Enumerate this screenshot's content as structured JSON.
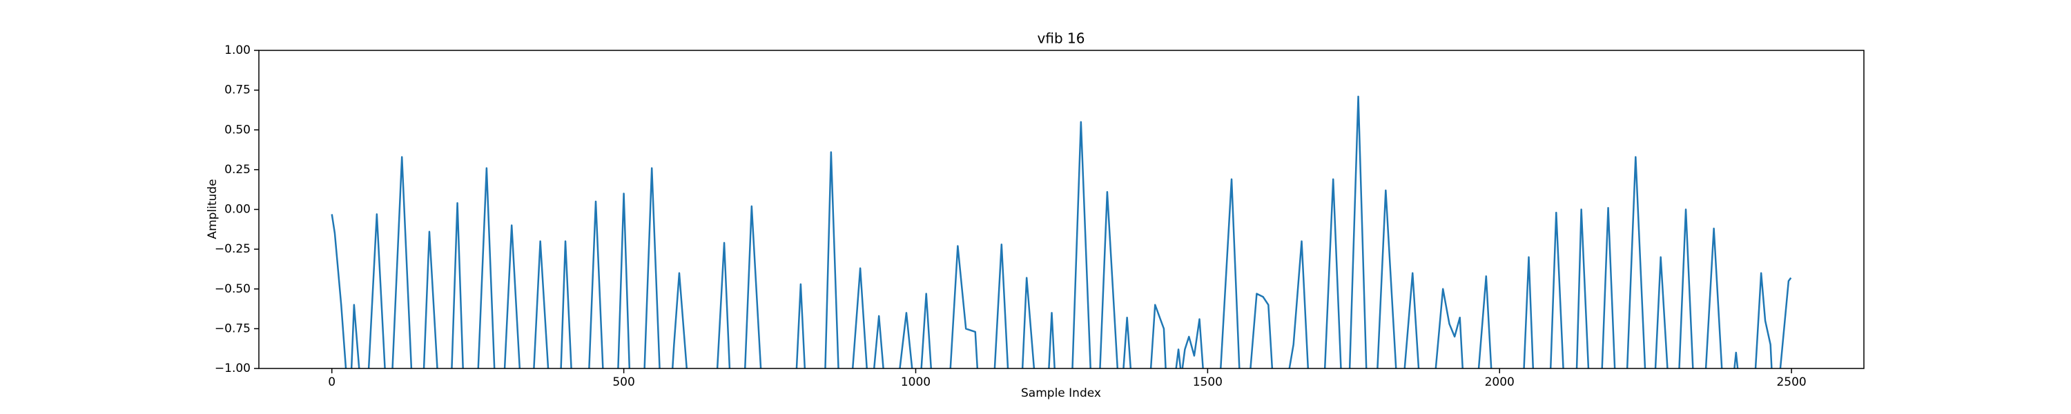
{
  "chart_data": {
    "type": "line",
    "title": "vfib 16",
    "xlabel": "Sample Index",
    "ylabel": "Amplitude",
    "x": [
      0,
      5,
      16,
      27,
      32,
      38,
      50,
      61,
      77,
      93,
      102,
      120,
      138,
      156,
      167,
      183,
      204,
      215,
      226,
      249,
      265,
      280,
      294,
      308,
      324,
      344,
      357,
      373,
      391,
      400,
      412,
      439,
      452,
      466,
      489,
      500,
      511,
      534,
      548,
      563,
      581,
      586,
      595,
      611,
      658,
      672,
      683,
      706,
      719,
      737,
      794,
      803,
      812,
      844,
      855,
      869,
      889,
      905,
      919,
      925,
      937,
      948,
      968,
      984,
      998,
      1007,
      1018,
      1029,
      1057,
      1072,
      1086,
      1102,
      1108,
      1133,
      1147,
      1160,
      1181,
      1190,
      1206,
      1226,
      1233,
      1240,
      1267,
      1283,
      1301,
      1314,
      1328,
      1348,
      1353,
      1362,
      1371,
      1400,
      1410,
      1425,
      1430,
      1441,
      1450,
      1455,
      1461,
      1468,
      1477,
      1486,
      1495,
      1520,
      1541,
      1556,
      1570,
      1584,
      1595,
      1604,
      1613,
      1633,
      1647,
      1661,
      1674,
      1699,
      1715,
      1730,
      1742,
      1758,
      1773,
      1789,
      1805,
      1825,
      1834,
      1851,
      1864,
      1887,
      1903,
      1914,
      1923,
      1932,
      1939,
      1961,
      1977,
      1988,
      2040,
      2050,
      2059,
      2086,
      2097,
      2111,
      2131,
      2140,
      2154,
      2174,
      2186,
      2199,
      2217,
      2233,
      2251,
      2265,
      2276,
      2290,
      2306,
      2319,
      2333,
      2351,
      2367,
      2383,
      2398,
      2405,
      2412,
      2436,
      2448,
      2455,
      2464,
      2468,
      2477,
      2495,
      2499
    ],
    "series": [
      {
        "name": "vfib 16",
        "color": "#1f77b4",
        "values": [
          -0.03,
          -0.15,
          -0.6,
          -1.15,
          -1.15,
          -0.6,
          -1.15,
          -1.15,
          -0.03,
          -1.15,
          -1.15,
          0.33,
          -1.15,
          -1.15,
          -0.14,
          -1.15,
          -1.15,
          0.04,
          -1.15,
          -1.15,
          0.26,
          -1.15,
          -1.15,
          -0.1,
          -1.15,
          -1.15,
          -0.2,
          -1.15,
          -1.15,
          -0.2,
          -1.15,
          -1.15,
          0.05,
          -1.15,
          -1.15,
          0.1,
          -1.15,
          -1.15,
          0.26,
          -1.15,
          -1.15,
          -0.85,
          -0.4,
          -1.15,
          -1.15,
          -0.21,
          -1.15,
          -1.15,
          0.02,
          -1.15,
          -1.15,
          -0.47,
          -1.15,
          -1.15,
          0.36,
          -1.15,
          -1.15,
          -0.37,
          -1.15,
          -1.15,
          -0.67,
          -1.15,
          -1.15,
          -0.65,
          -1.15,
          -1.15,
          -0.53,
          -1.15,
          -1.15,
          -0.23,
          -0.75,
          -0.77,
          -1.15,
          -1.15,
          -0.22,
          -1.15,
          -1.15,
          -0.43,
          -1.15,
          -1.15,
          -0.65,
          -1.15,
          -1.15,
          0.55,
          -1.15,
          -1.15,
          0.11,
          -1.15,
          -1.15,
          -0.68,
          -1.15,
          -1.15,
          -0.6,
          -0.75,
          -1.15,
          -1.15,
          -0.88,
          -1.05,
          -0.88,
          -0.8,
          -0.92,
          -0.69,
          -1.15,
          -1.15,
          0.19,
          -1.15,
          -1.15,
          -0.53,
          -0.55,
          -0.6,
          -1.15,
          -1.15,
          -0.85,
          -0.2,
          -1.15,
          -1.15,
          0.19,
          -1.15,
          -1.15,
          0.71,
          -1.15,
          -1.15,
          0.12,
          -1.15,
          -1.15,
          -0.4,
          -1.15,
          -1.15,
          -0.5,
          -0.72,
          -0.8,
          -0.68,
          -1.15,
          -1.15,
          -0.42,
          -1.15,
          -1.15,
          -0.3,
          -1.15,
          -1.15,
          -0.02,
          -1.15,
          -1.15,
          0.0,
          -1.15,
          -1.15,
          0.01,
          -1.15,
          -1.15,
          0.33,
          -1.15,
          -1.15,
          -0.3,
          -1.15,
          -1.15,
          0.0,
          -1.15,
          -1.15,
          -0.12,
          -1.15,
          -1.15,
          -0.9,
          -1.15,
          -1.15,
          -0.4,
          -0.7,
          -0.85,
          -1.15,
          -1.15,
          -0.45,
          -0.43
        ]
      }
    ],
    "xlim": [
      -125,
      2624
    ],
    "ylim": [
      -1,
      1
    ],
    "xticks": [
      0,
      500,
      1000,
      1500,
      2000,
      2500
    ],
    "yticks": [
      {
        "value": -1,
        "label": "−1.00"
      },
      {
        "value": -0.75,
        "label": "−0.75"
      },
      {
        "value": -0.5,
        "label": "−0.50"
      },
      {
        "value": -0.25,
        "label": "−0.25"
      },
      {
        "value": 0,
        "label": "0.00"
      },
      {
        "value": 0.25,
        "label": "0.25"
      },
      {
        "value": 0.5,
        "label": "0.50"
      },
      {
        "value": 0.75,
        "label": "0.75"
      },
      {
        "value": 1,
        "label": "1.00"
      }
    ],
    "grid": false
  }
}
